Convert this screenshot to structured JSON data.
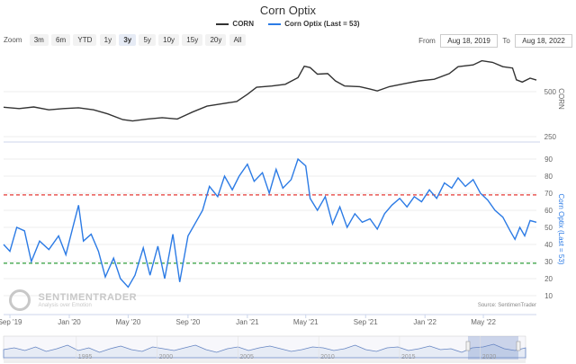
{
  "title": "Corn Optix",
  "legend": [
    {
      "name": "CORN",
      "color": "#333333"
    },
    {
      "name": "Corn Optix (Last = 53)",
      "color": "#2c7be5"
    }
  ],
  "toolbar": {
    "zoom_label": "Zoom",
    "buttons": [
      "3m",
      "6m",
      "YTD",
      "1y",
      "3y",
      "5y",
      "10y",
      "15y",
      "20y",
      "All"
    ],
    "active": "3y"
  },
  "range": {
    "from_label": "From",
    "from_value": "Aug 18, 2019",
    "to_label": "To",
    "to_value": "Aug 18, 2022"
  },
  "watermark": {
    "name": "SENTIMENTRADER",
    "tagline": "Analysis over Emotion"
  },
  "source": "Source: SentimenTrader",
  "chart_data": [
    {
      "type": "line",
      "name": "CORN price (log scale)",
      "ylabel": "CORN",
      "y_scale": "log",
      "y_ticks": [
        250,
        500
      ],
      "series": [
        {
          "name": "CORN",
          "color": "#333333",
          "points": [
            [
              "2019-08-19",
              393
            ],
            [
              "2019-09-20",
              385
            ],
            [
              "2019-10-20",
              395
            ],
            [
              "2019-11-20",
              378
            ],
            [
              "2019-12-20",
              385
            ],
            [
              "2020-01-20",
              390
            ],
            [
              "2020-02-20",
              378
            ],
            [
              "2020-03-20",
              355
            ],
            [
              "2020-04-20",
              325
            ],
            [
              "2020-05-10",
              318
            ],
            [
              "2020-06-10",
              328
            ],
            [
              "2020-07-10",
              335
            ],
            [
              "2020-08-10",
              328
            ],
            [
              "2020-09-10",
              365
            ],
            [
              "2020-10-10",
              400
            ],
            [
              "2020-11-10",
              415
            ],
            [
              "2020-12-10",
              430
            ],
            [
              "2021-01-01",
              480
            ],
            [
              "2021-01-20",
              535
            ],
            [
              "2021-02-20",
              545
            ],
            [
              "2021-03-20",
              560
            ],
            [
              "2021-04-15",
              620
            ],
            [
              "2021-04-28",
              740
            ],
            [
              "2021-05-10",
              725
            ],
            [
              "2021-05-25",
              655
            ],
            [
              "2021-06-15",
              660
            ],
            [
              "2021-07-01",
              590
            ],
            [
              "2021-07-20",
              545
            ],
            [
              "2021-08-20",
              540
            ],
            [
              "2021-09-10",
              520
            ],
            [
              "2021-09-25",
              505
            ],
            [
              "2021-10-20",
              540
            ],
            [
              "2021-11-20",
              565
            ],
            [
              "2021-12-20",
              590
            ],
            [
              "2022-01-20",
              605
            ],
            [
              "2022-02-20",
              660
            ],
            [
              "2022-03-10",
              735
            ],
            [
              "2022-04-10",
              755
            ],
            [
              "2022-04-28",
              805
            ],
            [
              "2022-05-20",
              785
            ],
            [
              "2022-06-10",
              735
            ],
            [
              "2022-06-30",
              720
            ],
            [
              "2022-07-08",
              600
            ],
            [
              "2022-07-20",
              580
            ],
            [
              "2022-08-05",
              615
            ],
            [
              "2022-08-18",
              598
            ]
          ]
        }
      ]
    },
    {
      "type": "line",
      "name": "Corn Optix",
      "ylabel": "Corn Optix (Last = 53)",
      "ylim": [
        0,
        90
      ],
      "y_ticks": [
        10,
        20,
        30,
        40,
        50,
        60,
        70,
        80,
        90
      ],
      "reference_lines": [
        {
          "value": 69,
          "color": "#e53935"
        },
        {
          "value": 29,
          "color": "#2e9e3a"
        }
      ],
      "x_ticks": [
        "Sep '19",
        "Jan '20",
        "May '20",
        "Sep '20",
        "Jan '21",
        "May '21",
        "Sep '21",
        "Jan '22",
        "May '22"
      ],
      "series": [
        {
          "name": "Corn Optix",
          "color": "#2c7be5",
          "points": [
            [
              "2019-08-19",
              40
            ],
            [
              "2019-09-01",
              36
            ],
            [
              "2019-09-15",
              50
            ],
            [
              "2019-10-01",
              48
            ],
            [
              "2019-10-15",
              30
            ],
            [
              "2019-11-01",
              42
            ],
            [
              "2019-11-20",
              37
            ],
            [
              "2019-12-10",
              45
            ],
            [
              "2019-12-25",
              34
            ],
            [
              "2020-01-10",
              52
            ],
            [
              "2020-01-20",
              63
            ],
            [
              "2020-01-30",
              42
            ],
            [
              "2020-02-15",
              46
            ],
            [
              "2020-03-01",
              36
            ],
            [
              "2020-03-15",
              21
            ],
            [
              "2020-04-01",
              32
            ],
            [
              "2020-04-15",
              20
            ],
            [
              "2020-05-01",
              15
            ],
            [
              "2020-05-15",
              22
            ],
            [
              "2020-06-01",
              38
            ],
            [
              "2020-06-15",
              22
            ],
            [
              "2020-07-01",
              39
            ],
            [
              "2020-07-15",
              20
            ],
            [
              "2020-08-01",
              46
            ],
            [
              "2020-08-15",
              18
            ],
            [
              "2020-09-01",
              45
            ],
            [
              "2020-09-15",
              52
            ],
            [
              "2020-10-01",
              60
            ],
            [
              "2020-10-15",
              74
            ],
            [
              "2020-11-01",
              68
            ],
            [
              "2020-11-15",
              80
            ],
            [
              "2020-12-01",
              72
            ],
            [
              "2020-12-15",
              80
            ],
            [
              "2021-01-01",
              87
            ],
            [
              "2021-01-15",
              77
            ],
            [
              "2021-02-01",
              82
            ],
            [
              "2021-02-15",
              70
            ],
            [
              "2021-03-01",
              84
            ],
            [
              "2021-03-15",
              73
            ],
            [
              "2021-04-01",
              78
            ],
            [
              "2021-04-15",
              90
            ],
            [
              "2021-05-01",
              86
            ],
            [
              "2021-05-10",
              67
            ],
            [
              "2021-05-25",
              60
            ],
            [
              "2021-06-10",
              68
            ],
            [
              "2021-06-25",
              52
            ],
            [
              "2021-07-10",
              62
            ],
            [
              "2021-07-25",
              50
            ],
            [
              "2021-08-10",
              58
            ],
            [
              "2021-08-25",
              53
            ],
            [
              "2021-09-10",
              55
            ],
            [
              "2021-09-25",
              49
            ],
            [
              "2021-10-10",
              58
            ],
            [
              "2021-10-25",
              63
            ],
            [
              "2021-11-10",
              67
            ],
            [
              "2021-11-25",
              62
            ],
            [
              "2021-12-10",
              68
            ],
            [
              "2021-12-25",
              65
            ],
            [
              "2022-01-10",
              72
            ],
            [
              "2022-01-25",
              67
            ],
            [
              "2022-02-10",
              76
            ],
            [
              "2022-02-25",
              73
            ],
            [
              "2022-03-10",
              79
            ],
            [
              "2022-03-25",
              74
            ],
            [
              "2022-04-10",
              78
            ],
            [
              "2022-04-25",
              70
            ],
            [
              "2022-05-10",
              66
            ],
            [
              "2022-05-25",
              60
            ],
            [
              "2022-06-10",
              56
            ],
            [
              "2022-06-25",
              48
            ],
            [
              "2022-07-05",
              43
            ],
            [
              "2022-07-15",
              50
            ],
            [
              "2022-07-25",
              45
            ],
            [
              "2022-08-05",
              54
            ],
            [
              "2022-08-18",
              53
            ]
          ]
        }
      ]
    },
    {
      "type": "area",
      "name": "Navigator",
      "x_ticks": [
        "1995",
        "2000",
        "2005",
        "2010",
        "2015",
        "2020"
      ]
    }
  ]
}
